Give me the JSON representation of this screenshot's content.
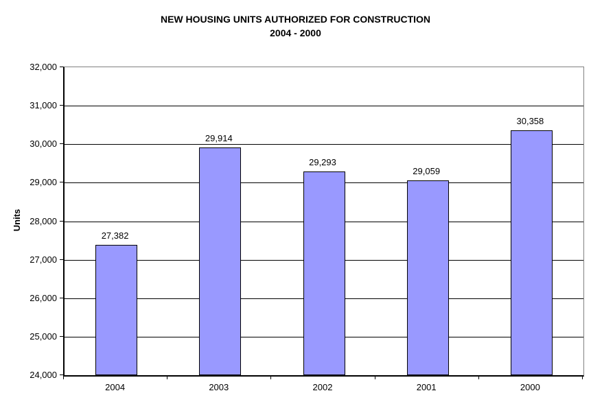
{
  "title": {
    "line1": "NEW HOUSING UNITS AUTHORIZED FOR CONSTRUCTION",
    "line2": "2004 - 2000"
  },
  "chart_data": {
    "type": "bar",
    "title": "NEW HOUSING UNITS AUTHORIZED FOR CONSTRUCTION 2004 - 2000",
    "categories": [
      "2004",
      "2003",
      "2002",
      "2001",
      "2000"
    ],
    "values": [
      27382,
      29914,
      29293,
      29059,
      30358
    ],
    "data_labels": [
      "27,382",
      "29,914",
      "29,293",
      "29,059",
      "30,358"
    ],
    "xlabel": "",
    "ylabel": "Units",
    "ylim": [
      24000,
      32000
    ],
    "ytick_interval": 1000,
    "ytick_labels": [
      "24,000",
      "25,000",
      "26,000",
      "27,000",
      "28,000",
      "29,000",
      "30,000",
      "31,000",
      "32,000"
    ],
    "grid": true,
    "legend": "none",
    "colors": {
      "bar_fill": "#9999FF",
      "bar_border": "#000000",
      "gridline": "#000000",
      "plot_border": "#808080",
      "axis": "#000000",
      "text": "#000000",
      "background": "#FFFFFF"
    }
  }
}
